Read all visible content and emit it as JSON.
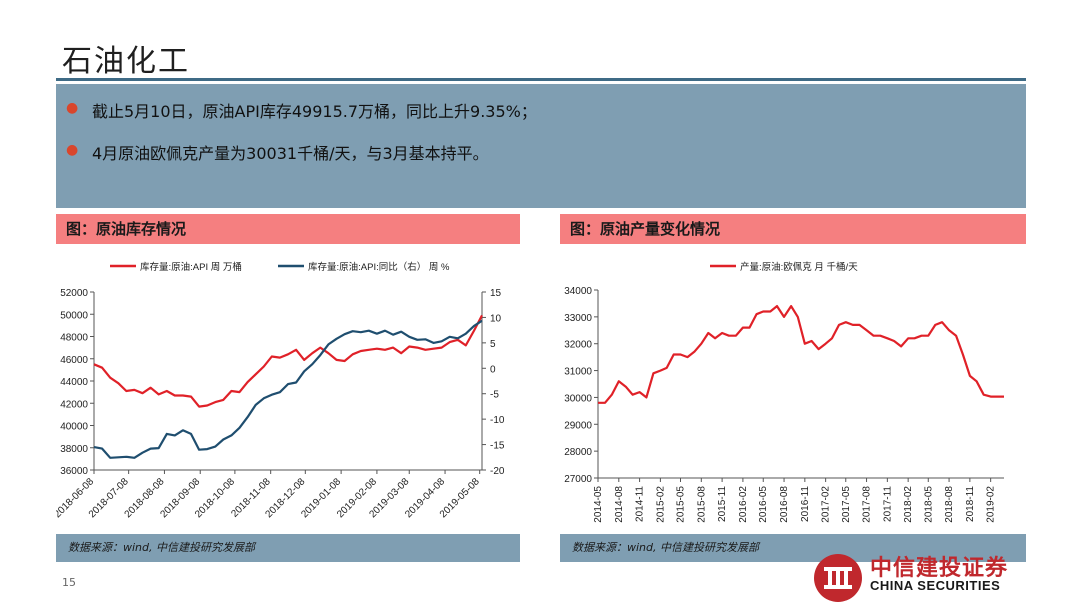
{
  "slide": {
    "title": "石油化工",
    "page_number": "15",
    "bullets": [
      "截止5月10日，原油API库存49915.7万桶，同比上升9.35%；",
      "4月原油欧佩克产量为30031千桶/天，与3月基本持平。"
    ],
    "colors": {
      "accent_red": "#e02128",
      "navy": "#1f4e6f",
      "panel_red": "#f57f80",
      "band_blue": "#7f9eb2"
    },
    "logo": {
      "cn": "中信建投证券",
      "en": "CHINA SECURITIES"
    }
  },
  "left_panel": {
    "header": "图：原油库存情况",
    "source": "数据来源：wind, 中信建投研究发展部"
  },
  "right_panel": {
    "header": "图：原油产量变化情况",
    "source": "数据来源：wind, 中信建投研究发展部"
  },
  "chart_data": [
    {
      "type": "line",
      "x_ticks": [
        "2018-06-08",
        "2018-07-08",
        "2018-08-08",
        "2018-09-08",
        "2018-10-08",
        "2018-11-08",
        "2018-12-08",
        "2019-01-08",
        "2019-02-08",
        "2019-03-08",
        "2019-04-08",
        "2019-05-08"
      ],
      "ylim": [
        36000,
        52000
      ],
      "y_ticks": [
        36000,
        38000,
        40000,
        42000,
        44000,
        46000,
        48000,
        50000,
        52000
      ],
      "y2lim": [
        -20,
        15
      ],
      "y2_ticks": [
        -20,
        -15,
        -10,
        -5,
        0,
        5,
        10,
        15
      ],
      "legend_position": "top",
      "series": [
        {
          "name": "库存量:原油:API 周 万桶",
          "color": "#e02128",
          "axis": "left",
          "x": [
            "2018-06-08",
            "2018-06-15",
            "2018-06-22",
            "2018-06-29",
            "2018-07-06",
            "2018-07-13",
            "2018-07-20",
            "2018-07-27",
            "2018-08-03",
            "2018-08-10",
            "2018-08-17",
            "2018-08-24",
            "2018-08-31",
            "2018-09-07",
            "2018-09-14",
            "2018-09-21",
            "2018-09-28",
            "2018-10-05",
            "2018-10-12",
            "2018-10-19",
            "2018-10-26",
            "2018-11-02",
            "2018-11-09",
            "2018-11-16",
            "2018-11-23",
            "2018-11-30",
            "2018-12-07",
            "2018-12-14",
            "2018-12-21",
            "2018-12-28",
            "2019-01-04",
            "2019-01-11",
            "2019-01-18",
            "2019-01-25",
            "2019-02-01",
            "2019-02-08",
            "2019-02-15",
            "2019-02-22",
            "2019-03-01",
            "2019-03-08",
            "2019-03-15",
            "2019-03-22",
            "2019-03-29",
            "2019-04-05",
            "2019-04-12",
            "2019-04-19",
            "2019-04-26",
            "2019-05-03",
            "2019-05-10"
          ],
          "values": [
            45500,
            45200,
            44300,
            43800,
            43100,
            43200,
            42900,
            43400,
            42800,
            43100,
            42700,
            42700,
            42600,
            41700,
            41800,
            42100,
            42300,
            43100,
            43000,
            43900,
            44600,
            45300,
            46200,
            46100,
            46400,
            46800,
            45900,
            46500,
            47000,
            46500,
            45900,
            45800,
            46400,
            46700,
            46800,
            46900,
            46800,
            47000,
            46500,
            47100,
            47000,
            46800,
            46900,
            47000,
            47500,
            47700,
            47200,
            48500,
            49900
          ]
        },
        {
          "name": "库存量:原油:API:同比（右） 周 %",
          "color": "#1f4e6f",
          "axis": "right",
          "x": [
            "2018-06-08",
            "2018-06-15",
            "2018-06-22",
            "2018-06-29",
            "2018-07-06",
            "2018-07-13",
            "2018-07-20",
            "2018-07-27",
            "2018-08-03",
            "2018-08-10",
            "2018-08-17",
            "2018-08-24",
            "2018-08-31",
            "2018-09-07",
            "2018-09-14",
            "2018-09-21",
            "2018-09-28",
            "2018-10-05",
            "2018-10-12",
            "2018-10-19",
            "2018-10-26",
            "2018-11-02",
            "2018-11-09",
            "2018-11-16",
            "2018-11-23",
            "2018-11-30",
            "2018-12-07",
            "2018-12-14",
            "2018-12-21",
            "2018-12-28",
            "2019-01-04",
            "2019-01-11",
            "2019-01-18",
            "2019-01-25",
            "2019-02-01",
            "2019-02-08",
            "2019-02-15",
            "2019-02-22",
            "2019-03-01",
            "2019-03-08",
            "2019-03-15",
            "2019-03-22",
            "2019-03-29",
            "2019-04-05",
            "2019-04-12",
            "2019-04-19",
            "2019-04-26",
            "2019-05-03",
            "2019-05-10"
          ],
          "values": [
            -15.5,
            -15.8,
            -17.6,
            -17.5,
            -17.4,
            -17.6,
            -16.6,
            -15.8,
            -15.7,
            -12.9,
            -13.2,
            -12.2,
            -12.9,
            -16.0,
            -15.9,
            -15.4,
            -14.0,
            -13.2,
            -11.7,
            -9.6,
            -7.2,
            -5.9,
            -5.2,
            -4.7,
            -3.1,
            -2.8,
            -0.6,
            0.8,
            2.6,
            4.7,
            5.8,
            6.7,
            7.3,
            7.1,
            7.4,
            6.8,
            7.4,
            6.6,
            7.2,
            6.2,
            5.6,
            5.7,
            5.0,
            5.3,
            6.2,
            5.9,
            6.8,
            8.3,
            9.35
          ]
        }
      ]
    },
    {
      "type": "line",
      "x_ticks": [
        "2014-05",
        "2014-08",
        "2014-11",
        "2015-02",
        "2015-05",
        "2015-08",
        "2015-11",
        "2016-02",
        "2016-05",
        "2016-08",
        "2016-11",
        "2017-02",
        "2017-05",
        "2017-08",
        "2017-11",
        "2018-02",
        "2018-05",
        "2018-08",
        "2018-11",
        "2019-02"
      ],
      "ylim": [
        27000,
        34000
      ],
      "y_ticks": [
        27000,
        28000,
        29000,
        30000,
        31000,
        32000,
        33000,
        34000
      ],
      "legend_position": "top",
      "series": [
        {
          "name": "产量:原油:欧佩克 月 千桶/天",
          "color": "#e02128",
          "x": [
            "2014-05",
            "2014-06",
            "2014-07",
            "2014-08",
            "2014-09",
            "2014-10",
            "2014-11",
            "2014-12",
            "2015-01",
            "2015-02",
            "2015-03",
            "2015-04",
            "2015-05",
            "2015-06",
            "2015-07",
            "2015-08",
            "2015-09",
            "2015-10",
            "2015-11",
            "2015-12",
            "2016-01",
            "2016-02",
            "2016-03",
            "2016-04",
            "2016-05",
            "2016-06",
            "2016-07",
            "2016-08",
            "2016-09",
            "2016-10",
            "2016-11",
            "2016-12",
            "2017-01",
            "2017-02",
            "2017-03",
            "2017-04",
            "2017-05",
            "2017-06",
            "2017-07",
            "2017-08",
            "2017-09",
            "2017-10",
            "2017-11",
            "2017-12",
            "2018-01",
            "2018-02",
            "2018-03",
            "2018-04",
            "2018-05",
            "2018-06",
            "2018-07",
            "2018-08",
            "2018-09",
            "2018-10",
            "2018-11",
            "2018-12",
            "2019-01",
            "2019-02",
            "2019-03",
            "2019-04"
          ],
          "values": [
            29800,
            29800,
            30100,
            30600,
            30400,
            30100,
            30200,
            30000,
            30900,
            31000,
            31100,
            31600,
            31600,
            31500,
            31700,
            32000,
            32400,
            32200,
            32400,
            32300,
            32300,
            32600,
            32600,
            33100,
            33200,
            33200,
            33400,
            33000,
            33400,
            33000,
            32000,
            32100,
            31800,
            32000,
            32200,
            32700,
            32800,
            32700,
            32700,
            32500,
            32300,
            32300,
            32200,
            32100,
            31900,
            32200,
            32200,
            32300,
            32300,
            32700,
            32800,
            32500,
            32300,
            31600,
            30800,
            30600,
            30100,
            30031,
            30031,
            30031
          ]
        }
      ]
    }
  ]
}
